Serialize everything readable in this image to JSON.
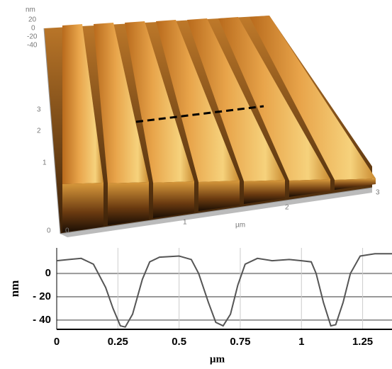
{
  "afm_image": {
    "z_unit": "nm",
    "z_ticks": [
      "20",
      "0",
      "-20",
      "-40"
    ],
    "y_ticks": [
      "3",
      "2",
      "1",
      "0"
    ],
    "x_ticks": [
      "0",
      "1",
      "2",
      "3"
    ],
    "x_unit": "µm"
  },
  "chart_data": {
    "type": "line",
    "x_label": "µm",
    "y_label": "nm",
    "x": [
      0,
      0.05,
      0.1,
      0.15,
      0.2,
      0.23,
      0.26,
      0.28,
      0.31,
      0.35,
      0.38,
      0.42,
      0.5,
      0.55,
      0.58,
      0.62,
      0.65,
      0.68,
      0.71,
      0.74,
      0.77,
      0.82,
      0.88,
      0.95,
      1.0,
      1.04,
      1.06,
      1.09,
      1.12,
      1.14,
      1.17,
      1.2,
      1.24,
      1.3,
      1.37
    ],
    "series": [
      {
        "color": "#555555",
        "values": [
          11,
          12,
          13,
          8,
          -12,
          -30,
          -45,
          -46,
          -35,
          -5,
          10,
          14,
          15,
          12,
          0,
          -25,
          -42,
          -45,
          -35,
          -10,
          8,
          13,
          11,
          12,
          11,
          10,
          0,
          -25,
          -45,
          -44,
          -25,
          0,
          15,
          17,
          17
        ]
      }
    ],
    "xlim": [
      0,
      1.37
    ],
    "ylim": [
      -48,
      22
    ],
    "xticks": [
      0,
      0.25,
      0.5,
      0.75,
      1,
      1.25
    ],
    "yticks": [
      0,
      {
        "value": -20,
        "label": "- 20"
      },
      {
        "value": -40,
        "label": "- 40"
      }
    ],
    "grid": true
  }
}
